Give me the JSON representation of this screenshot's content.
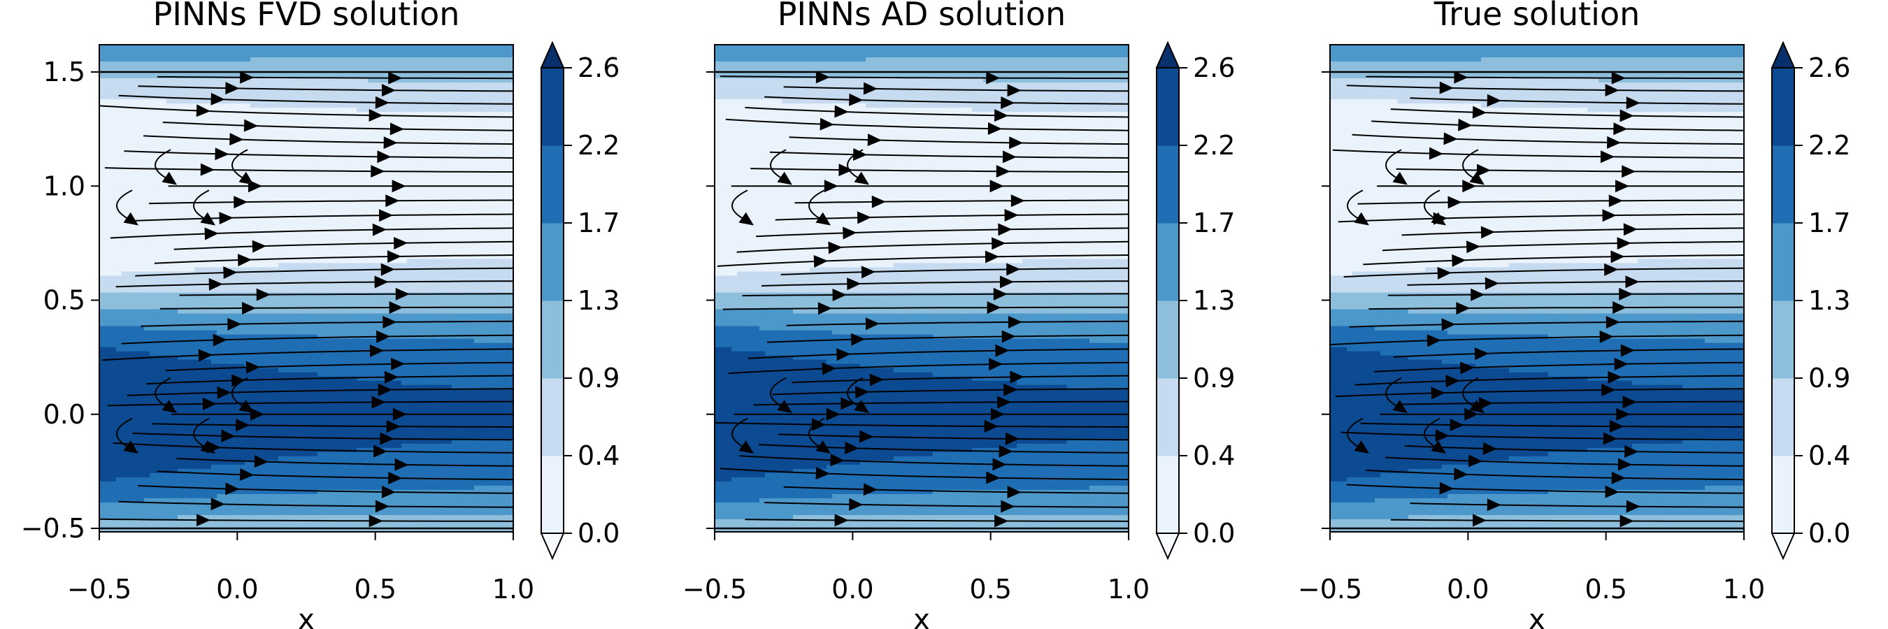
{
  "chart_data": {
    "type": "heatmap",
    "subtype": "filled contour with streamlines",
    "shared": {
      "xlabel": "x",
      "ylabel": "",
      "xlim": [
        -0.5,
        1.0
      ],
      "ylim": [
        -0.5,
        1.5
      ],
      "xticks": [
        "−0.5",
        "0.0",
        "0.5",
        "1.0"
      ],
      "yticks": [
        "1.5",
        "1.0",
        "0.5",
        "0.0",
        "−0.5"
      ],
      "colorbar": {
        "levels": [
          "2.6",
          "2.2",
          "1.7",
          "1.3",
          "0.9",
          "0.4",
          "0.0"
        ],
        "level_values": [
          0.0,
          0.4,
          0.9,
          1.3,
          1.7,
          2.2,
          2.6
        ],
        "colors": [
          "#eaf2fb",
          "#c6dbef",
          "#8dbfdd",
          "#4c98cb",
          "#1f6eb4",
          "#0c4a91"
        ],
        "extend": "both",
        "under_color": "#f7fbff",
        "over_color": "#08306b"
      },
      "streamline_color": "#000000"
    },
    "panels": [
      {
        "title": "PINNs FVD solution"
      },
      {
        "title": "PINNs AD solution"
      },
      {
        "title": "True solution"
      }
    ]
  }
}
